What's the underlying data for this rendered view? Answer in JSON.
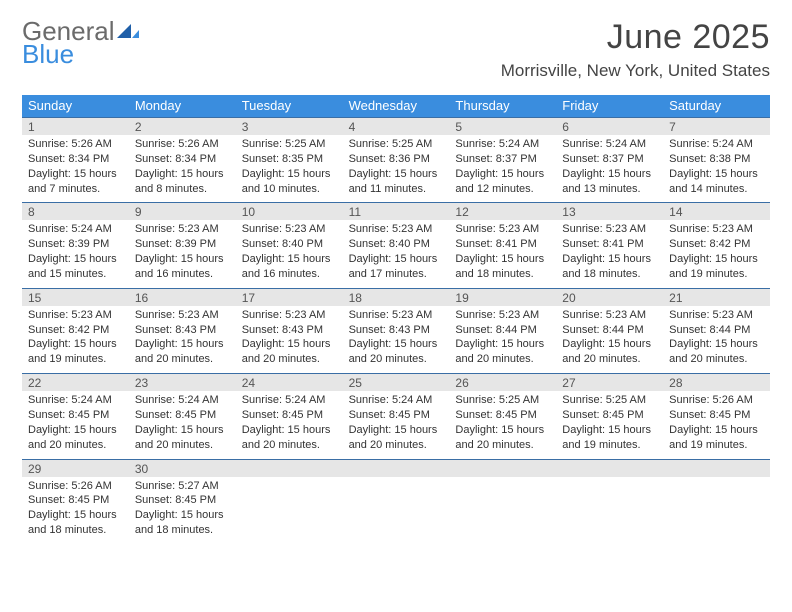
{
  "logo": {
    "word1": "General",
    "word2": "Blue",
    "color_gray": "#6b6b6b",
    "color_blue": "#3a8dde"
  },
  "title": "June 2025",
  "location": "Morrisville, New York, United States",
  "header_bg": "#3a8dde",
  "daynum_bg": "#e6e6e6",
  "rule_color": "#3a6ea5",
  "weekdays": [
    "Sunday",
    "Monday",
    "Tuesday",
    "Wednesday",
    "Thursday",
    "Friday",
    "Saturday"
  ],
  "weeks": [
    [
      {
        "n": "1",
        "sr": "Sunrise: 5:26 AM",
        "ss": "Sunset: 8:34 PM",
        "d1": "Daylight: 15 hours",
        "d2": "and 7 minutes."
      },
      {
        "n": "2",
        "sr": "Sunrise: 5:26 AM",
        "ss": "Sunset: 8:34 PM",
        "d1": "Daylight: 15 hours",
        "d2": "and 8 minutes."
      },
      {
        "n": "3",
        "sr": "Sunrise: 5:25 AM",
        "ss": "Sunset: 8:35 PM",
        "d1": "Daylight: 15 hours",
        "d2": "and 10 minutes."
      },
      {
        "n": "4",
        "sr": "Sunrise: 5:25 AM",
        "ss": "Sunset: 8:36 PM",
        "d1": "Daylight: 15 hours",
        "d2": "and 11 minutes."
      },
      {
        "n": "5",
        "sr": "Sunrise: 5:24 AM",
        "ss": "Sunset: 8:37 PM",
        "d1": "Daylight: 15 hours",
        "d2": "and 12 minutes."
      },
      {
        "n": "6",
        "sr": "Sunrise: 5:24 AM",
        "ss": "Sunset: 8:37 PM",
        "d1": "Daylight: 15 hours",
        "d2": "and 13 minutes."
      },
      {
        "n": "7",
        "sr": "Sunrise: 5:24 AM",
        "ss": "Sunset: 8:38 PM",
        "d1": "Daylight: 15 hours",
        "d2": "and 14 minutes."
      }
    ],
    [
      {
        "n": "8",
        "sr": "Sunrise: 5:24 AM",
        "ss": "Sunset: 8:39 PM",
        "d1": "Daylight: 15 hours",
        "d2": "and 15 minutes."
      },
      {
        "n": "9",
        "sr": "Sunrise: 5:23 AM",
        "ss": "Sunset: 8:39 PM",
        "d1": "Daylight: 15 hours",
        "d2": "and 16 minutes."
      },
      {
        "n": "10",
        "sr": "Sunrise: 5:23 AM",
        "ss": "Sunset: 8:40 PM",
        "d1": "Daylight: 15 hours",
        "d2": "and 16 minutes."
      },
      {
        "n": "11",
        "sr": "Sunrise: 5:23 AM",
        "ss": "Sunset: 8:40 PM",
        "d1": "Daylight: 15 hours",
        "d2": "and 17 minutes."
      },
      {
        "n": "12",
        "sr": "Sunrise: 5:23 AM",
        "ss": "Sunset: 8:41 PM",
        "d1": "Daylight: 15 hours",
        "d2": "and 18 minutes."
      },
      {
        "n": "13",
        "sr": "Sunrise: 5:23 AM",
        "ss": "Sunset: 8:41 PM",
        "d1": "Daylight: 15 hours",
        "d2": "and 18 minutes."
      },
      {
        "n": "14",
        "sr": "Sunrise: 5:23 AM",
        "ss": "Sunset: 8:42 PM",
        "d1": "Daylight: 15 hours",
        "d2": "and 19 minutes."
      }
    ],
    [
      {
        "n": "15",
        "sr": "Sunrise: 5:23 AM",
        "ss": "Sunset: 8:42 PM",
        "d1": "Daylight: 15 hours",
        "d2": "and 19 minutes."
      },
      {
        "n": "16",
        "sr": "Sunrise: 5:23 AM",
        "ss": "Sunset: 8:43 PM",
        "d1": "Daylight: 15 hours",
        "d2": "and 20 minutes."
      },
      {
        "n": "17",
        "sr": "Sunrise: 5:23 AM",
        "ss": "Sunset: 8:43 PM",
        "d1": "Daylight: 15 hours",
        "d2": "and 20 minutes."
      },
      {
        "n": "18",
        "sr": "Sunrise: 5:23 AM",
        "ss": "Sunset: 8:43 PM",
        "d1": "Daylight: 15 hours",
        "d2": "and 20 minutes."
      },
      {
        "n": "19",
        "sr": "Sunrise: 5:23 AM",
        "ss": "Sunset: 8:44 PM",
        "d1": "Daylight: 15 hours",
        "d2": "and 20 minutes."
      },
      {
        "n": "20",
        "sr": "Sunrise: 5:23 AM",
        "ss": "Sunset: 8:44 PM",
        "d1": "Daylight: 15 hours",
        "d2": "and 20 minutes."
      },
      {
        "n": "21",
        "sr": "Sunrise: 5:23 AM",
        "ss": "Sunset: 8:44 PM",
        "d1": "Daylight: 15 hours",
        "d2": "and 20 minutes."
      }
    ],
    [
      {
        "n": "22",
        "sr": "Sunrise: 5:24 AM",
        "ss": "Sunset: 8:45 PM",
        "d1": "Daylight: 15 hours",
        "d2": "and 20 minutes."
      },
      {
        "n": "23",
        "sr": "Sunrise: 5:24 AM",
        "ss": "Sunset: 8:45 PM",
        "d1": "Daylight: 15 hours",
        "d2": "and 20 minutes."
      },
      {
        "n": "24",
        "sr": "Sunrise: 5:24 AM",
        "ss": "Sunset: 8:45 PM",
        "d1": "Daylight: 15 hours",
        "d2": "and 20 minutes."
      },
      {
        "n": "25",
        "sr": "Sunrise: 5:24 AM",
        "ss": "Sunset: 8:45 PM",
        "d1": "Daylight: 15 hours",
        "d2": "and 20 minutes."
      },
      {
        "n": "26",
        "sr": "Sunrise: 5:25 AM",
        "ss": "Sunset: 8:45 PM",
        "d1": "Daylight: 15 hours",
        "d2": "and 20 minutes."
      },
      {
        "n": "27",
        "sr": "Sunrise: 5:25 AM",
        "ss": "Sunset: 8:45 PM",
        "d1": "Daylight: 15 hours",
        "d2": "and 19 minutes."
      },
      {
        "n": "28",
        "sr": "Sunrise: 5:26 AM",
        "ss": "Sunset: 8:45 PM",
        "d1": "Daylight: 15 hours",
        "d2": "and 19 minutes."
      }
    ],
    [
      {
        "n": "29",
        "sr": "Sunrise: 5:26 AM",
        "ss": "Sunset: 8:45 PM",
        "d1": "Daylight: 15 hours",
        "d2": "and 18 minutes."
      },
      {
        "n": "30",
        "sr": "Sunrise: 5:27 AM",
        "ss": "Sunset: 8:45 PM",
        "d1": "Daylight: 15 hours",
        "d2": "and 18 minutes."
      },
      null,
      null,
      null,
      null,
      null
    ]
  ]
}
